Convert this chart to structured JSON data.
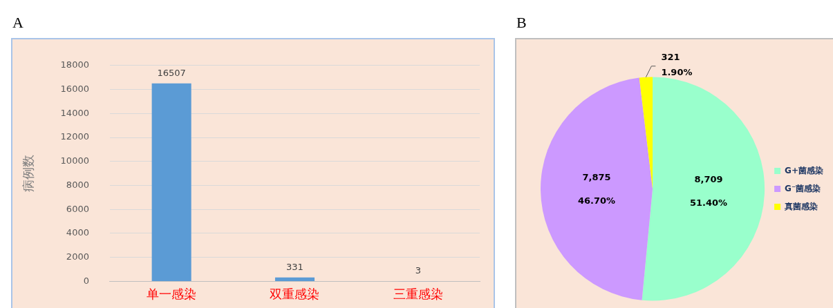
{
  "chart_data": [
    {
      "type": "bar",
      "title": "A",
      "ylabel": "病例数",
      "categories": [
        "单一感染",
        "双重感染",
        "三重感染"
      ],
      "values": [
        16507,
        331,
        3
      ],
      "color": "#5b9bd5",
      "ylim": [
        0,
        18000
      ],
      "yticks": [
        0,
        2000,
        4000,
        6000,
        8000,
        10000,
        12000,
        14000,
        16000,
        18000
      ],
      "grid": "y",
      "data_labels": true
    },
    {
      "type": "pie",
      "title": "B",
      "categories": [
        "G+菌感染",
        "G⁻菌感染",
        "真菌感染"
      ],
      "values": [
        8709,
        7875,
        321
      ],
      "colors": [
        "#99ffcc",
        "#cc99ff",
        "#ffff00"
      ],
      "value_labels": [
        "8,709\n51.40%",
        "7,875\n46.70%",
        "321\n1.90%"
      ],
      "legend": "right"
    }
  ]
}
